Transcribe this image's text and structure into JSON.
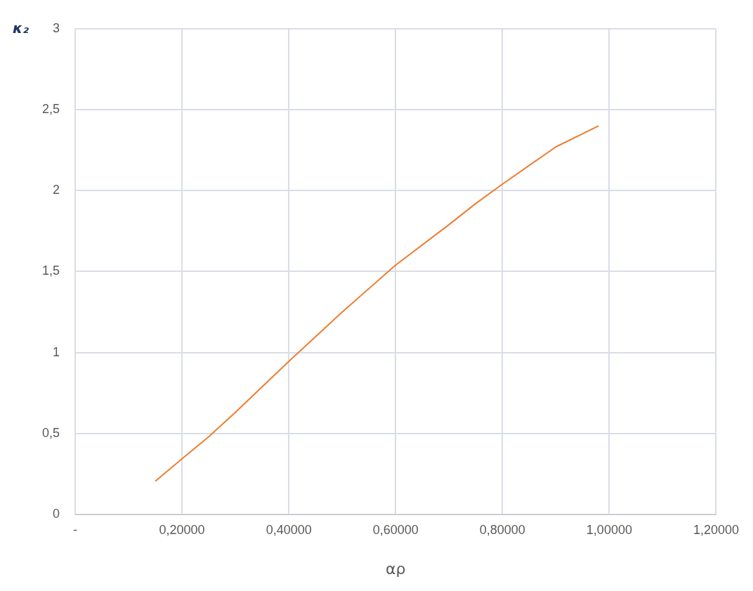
{
  "chart_data": {
    "type": "line",
    "xlabel": "αρ",
    "ylabel": "κ₂",
    "series": [
      {
        "color": "#ed7d31",
        "x": [
          0.15,
          0.197,
          0.25,
          0.3,
          0.4,
          0.5,
          0.6,
          0.7,
          0.75,
          0.8,
          0.9,
          0.98
        ],
        "values": [
          0.205,
          0.335,
          0.48,
          0.63,
          0.945,
          1.25,
          1.54,
          1.79,
          1.92,
          2.04,
          2.27,
          2.4
        ]
      }
    ],
    "xlim": [
      0,
      1.2
    ],
    "xticks": [
      {
        "value": 0,
        "label": "-"
      },
      {
        "value": 0.2,
        "label": "0,20000"
      },
      {
        "value": 0.4,
        "label": "0,40000"
      },
      {
        "value": 0.6,
        "label": "0,60000"
      },
      {
        "value": 0.8,
        "label": "0,80000"
      },
      {
        "value": 1,
        "label": "1,00000"
      },
      {
        "value": 1.2,
        "label": "1,20000"
      }
    ],
    "ylim": [
      0,
      3
    ],
    "yticks": [
      0,
      {
        "value": 0.5,
        "label": "0,5"
      },
      1,
      {
        "value": 1.5,
        "label": "1,5"
      },
      2,
      {
        "value": 2.5,
        "label": "2,5"
      },
      3
    ],
    "grid": true,
    "marker": "none",
    "line_style": "solid",
    "legend": false
  }
}
